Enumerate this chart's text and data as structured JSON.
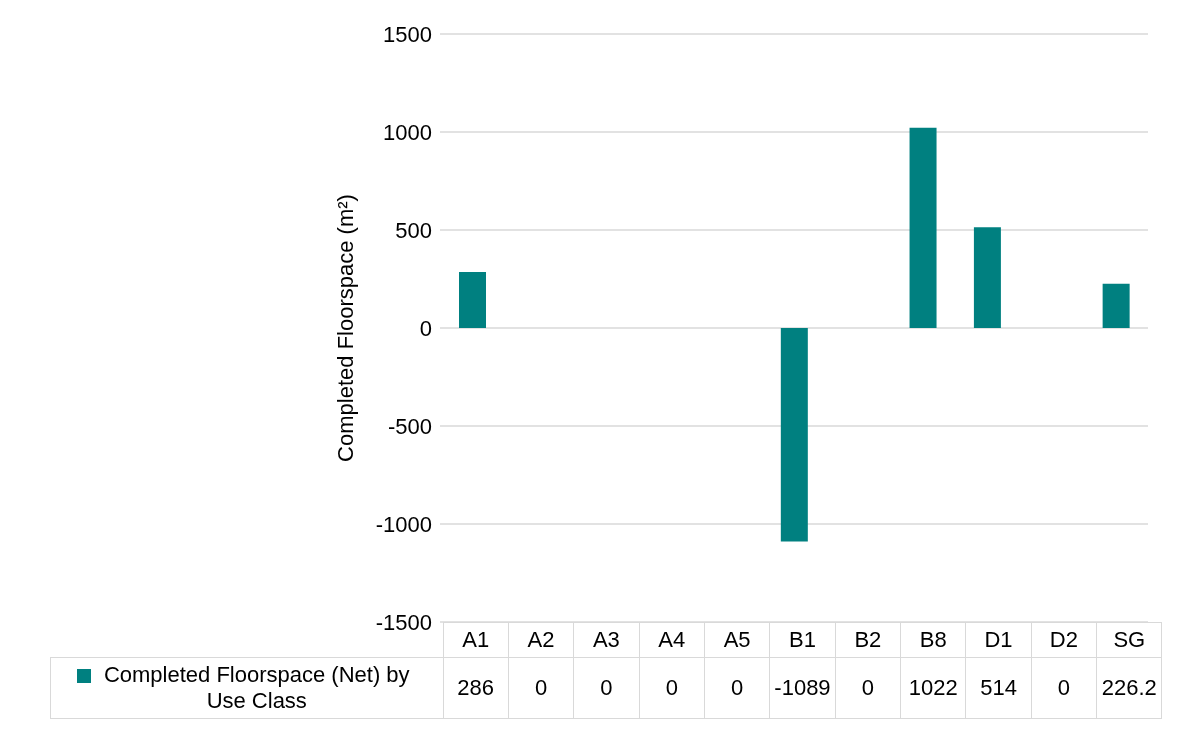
{
  "chart_data": {
    "type": "bar",
    "ylabel": "Completed Floorspace (m²)",
    "categories": [
      "A1",
      "A2",
      "A3",
      "A4",
      "A5",
      "B1",
      "B2",
      "B8",
      "D1",
      "D2",
      "SG"
    ],
    "series": [
      {
        "name": "Completed Floorspace (Net) by Use Class",
        "color": "#008080",
        "values": [
          286,
          0,
          0,
          0,
          0,
          -1089,
          0,
          1022,
          514,
          0,
          226.2
        ]
      }
    ],
    "ylim": [
      -1500,
      1500
    ],
    "yticks": [
      -1500,
      -1000,
      -500,
      0,
      500,
      1000,
      1500
    ],
    "grid": "y",
    "legend": "bottom",
    "data_labels": true
  }
}
